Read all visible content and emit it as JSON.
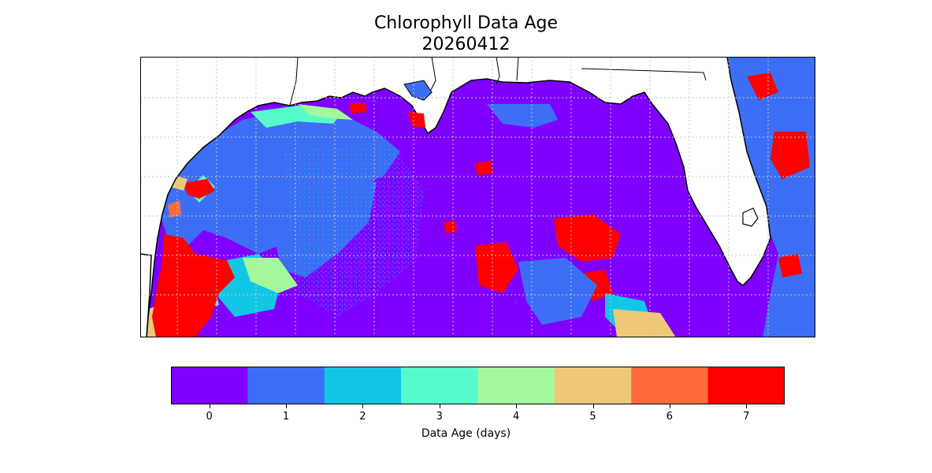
{
  "title": "Chlorophyll Data Age",
  "date": "20260412",
  "colorbar": {
    "label": "Data Age (days)",
    "ticks": [
      "0",
      "1",
      "2",
      "3",
      "4",
      "5",
      "6",
      "7"
    ],
    "colors": [
      "#7f00ff",
      "#3c6ff6",
      "#12c7e5",
      "#56fbcc",
      "#a2f89a",
      "#ecc877",
      "#ff6b3c",
      "#ff0000"
    ]
  },
  "map": {
    "land_color": "#ffffff",
    "grid": true,
    "grid_style": "dotted gray",
    "dominant_value": "0"
  }
}
